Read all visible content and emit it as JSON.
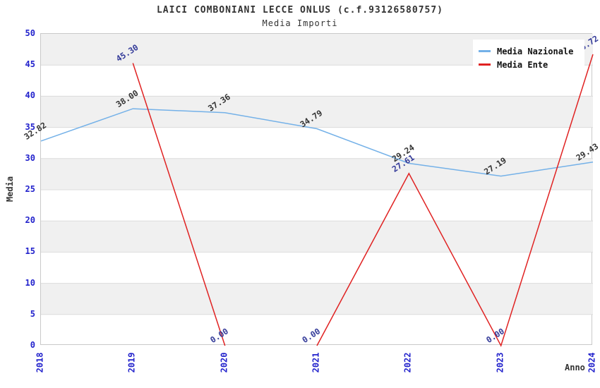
{
  "title": "LAICI COMBONIANI LECCE ONLUS (c.f.93126580757)",
  "subtitle": "Media Importi",
  "chart_data": {
    "type": "line",
    "title": "LAICI COMBONIANI LECCE ONLUS (c.f.93126580757)",
    "subtitle": "Media Importi",
    "xlabel": "Anno",
    "ylabel": "Media",
    "categories": [
      2018,
      2019,
      2020,
      2021,
      2022,
      2023,
      2024
    ],
    "ylim": [
      0,
      50
    ],
    "ytick_step": 5,
    "yticks": [
      0,
      5,
      10,
      15,
      20,
      25,
      30,
      35,
      40,
      45,
      50
    ],
    "grid": true,
    "legend_position": "top-right",
    "band_color": "#f0f0f0",
    "gridline_color": "#dcdcdc",
    "axis_tick_color": "#2222cc",
    "series": [
      {
        "name": "Media Nazionale",
        "color": "#74b1e8",
        "label_color": "#333333",
        "values": [
          32.82,
          38.0,
          37.36,
          34.79,
          29.24,
          27.19,
          29.43
        ],
        "segments": [
          [
            [
              2018,
              32.82
            ],
            [
              2019,
              38.0
            ],
            [
              2020,
              37.36
            ],
            [
              2021,
              34.79
            ],
            [
              2022,
              29.24
            ],
            [
              2023,
              27.19
            ],
            [
              2024,
              29.43
            ]
          ]
        ]
      },
      {
        "name": "Media Ente",
        "color": "#e02222",
        "label_color": "#333a99",
        "values": [
          null,
          45.3,
          0.0,
          0.0,
          27.61,
          0.0,
          46.72
        ],
        "segments": [
          [
            [
              2019,
              45.3
            ],
            [
              2020,
              0.0
            ]
          ],
          [
            [
              2021,
              0.0
            ],
            [
              2022,
              27.61
            ],
            [
              2023,
              0.0
            ],
            [
              2024,
              46.72
            ]
          ]
        ]
      }
    ]
  }
}
